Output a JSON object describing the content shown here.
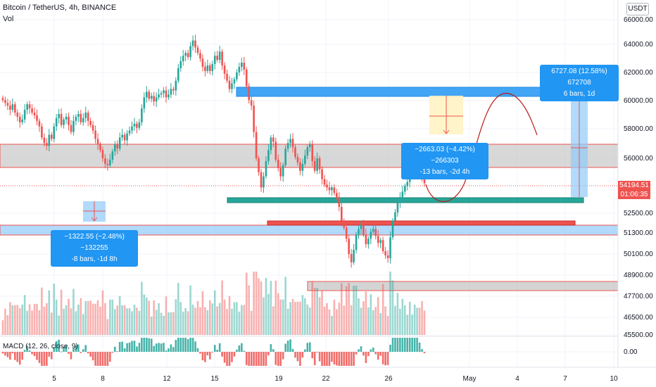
{
  "header": {
    "title": "Bitcoin / TetherUS, 4h, BINANCE",
    "volume_label": "Vol"
  },
  "currency_badge": "USDT",
  "macd_label": "MACD (12, 26, close, 9)",
  "current_price": "54194.51",
  "countdown": "01:06:35",
  "colors": {
    "up": "#26a69a",
    "down": "#ef5350",
    "accent": "#2196f3",
    "zone_grey": "#b8b8b8",
    "zone_blue": "#90caf9"
  },
  "measure_tags": [
    {
      "line1": "6727.08 (12.58%) 672708",
      "line2": "6 bars, 1d"
    },
    {
      "line1": "−2663.03 (−4.42%) −266303",
      "line2": "-13 bars, -2d 4h"
    },
    {
      "line1": "−1322.55 (−2.48%) −132255",
      "line2": "-8 bars, -1d 8h"
    }
  ],
  "chart_data": {
    "type": "candlestick",
    "y_ticks": [
      "66000.00",
      "64000.00",
      "62000.00",
      "60000.00",
      "58000.00",
      "56000.00",
      "52500.00",
      "51300.00",
      "50100.00",
      "48900.00",
      "47700.00",
      "46500.00",
      "45500.00"
    ],
    "macd_ticks": [
      "0.00"
    ],
    "x_ticks": [
      "5",
      "8",
      "12",
      "15",
      "19",
      "22",
      "26",
      "May",
      "4",
      "7",
      "10"
    ],
    "closes": [
      60200,
      60000,
      59800,
      59500,
      59900,
      59300,
      59000,
      58600,
      58800,
      59500,
      59900,
      59600,
      59300,
      59100,
      58700,
      58300,
      57500,
      57100,
      56900,
      57700,
      57400,
      58300,
      58900,
      59200,
      58400,
      58800,
      59000,
      58400,
      57900,
      58700,
      59000,
      59200,
      58600,
      58900,
      59300,
      58700,
      58400,
      58000,
      57400,
      57000,
      56600,
      56000,
      55600,
      55500,
      55900,
      56500,
      57000,
      56700,
      57500,
      57700,
      57300,
      57800,
      58000,
      58300,
      58500,
      58200,
      58600,
      59600,
      60400,
      60800,
      60300,
      60500,
      60100,
      60400,
      60600,
      60700,
      60900,
      60400,
      60600,
      61000,
      60900,
      61600,
      62500,
      63000,
      63400,
      63600,
      63300,
      64100,
      64500,
      64000,
      63600,
      63200,
      62600,
      62300,
      62700,
      62300,
      62800,
      63400,
      63100,
      63700,
      62700,
      62100,
      61600,
      61000,
      61400,
      61700,
      62200,
      62600,
      62900,
      62400,
      61200,
      60200,
      59800,
      57900,
      56000,
      55000,
      53900,
      54700,
      55800,
      56600,
      57500,
      57200,
      55900,
      55300,
      54700,
      55500,
      56700,
      57100,
      57400,
      56800,
      56100,
      55700,
      55100,
      55600,
      56200,
      56800,
      57000,
      55800,
      55100,
      56000,
      55200,
      54500,
      54100,
      53900,
      53700,
      53900,
      53500,
      53200,
      52500,
      51500,
      51000,
      50200,
      49100,
      48500,
      49400,
      50500,
      50900,
      51200,
      50500,
      49800,
      50200,
      50700,
      50900,
      50400,
      49900,
      50100,
      49300,
      49000,
      48800,
      50300,
      51500,
      52100,
      52800,
      53200,
      53600,
      54000,
      54300,
      54700,
      54900,
      55100,
      55400,
      54900,
      54500,
      54200
    ]
  }
}
